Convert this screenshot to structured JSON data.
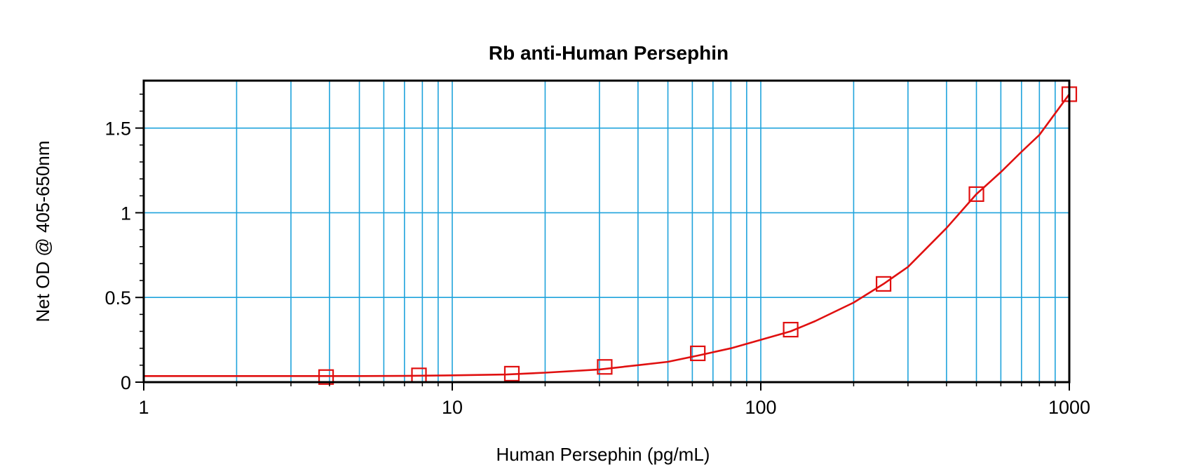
{
  "chart_data": {
    "type": "scatter",
    "title": "Rb anti-Human Persephin",
    "xlabel": "Human Persephin (pg/mL)",
    "ylabel": "Net OD @ 405-650nm",
    "x_scale": "log",
    "xlim": [
      1,
      1000
    ],
    "ylim": [
      0,
      1.78
    ],
    "x_ticks": [
      1,
      10,
      100,
      1000
    ],
    "x_tick_labels": [
      "1",
      "10",
      "100",
      "1000"
    ],
    "y_ticks": [
      0,
      0.5,
      1,
      1.5
    ],
    "y_tick_labels": [
      "0",
      "0.5",
      "1",
      "1.5"
    ],
    "grid": true,
    "legend": "none",
    "series": [
      {
        "marker": "open-square",
        "x": [
          3.9,
          7.8,
          15.6,
          31.2,
          62.5,
          125,
          250,
          500,
          1000
        ],
        "y": [
          0.03,
          0.04,
          0.05,
          0.09,
          0.17,
          0.31,
          0.58,
          1.11,
          1.7
        ]
      }
    ],
    "fit": {
      "type": "curve",
      "x": [
        1,
        2,
        3,
        5,
        7,
        10,
        15,
        20,
        30,
        40,
        50,
        62.5,
        80,
        100,
        125,
        150,
        200,
        250,
        300,
        400,
        500,
        600,
        700,
        800,
        1000
      ],
      "y": [
        0.036,
        0.036,
        0.036,
        0.036,
        0.037,
        0.04,
        0.045,
        0.056,
        0.075,
        0.1,
        0.12,
        0.157,
        0.2,
        0.25,
        0.3,
        0.36,
        0.47,
        0.58,
        0.68,
        0.91,
        1.11,
        1.24,
        1.36,
        1.46,
        1.7
      ]
    },
    "colors": {
      "grid": "#1fa3dc",
      "series": "#e01010",
      "axes": "#000000"
    }
  }
}
